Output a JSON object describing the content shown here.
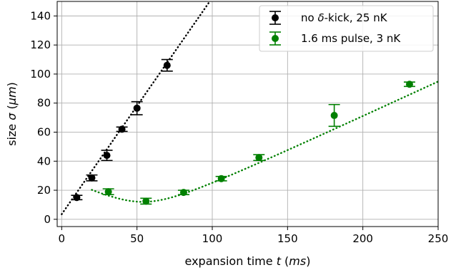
{
  "chart_data": {
    "type": "scatter",
    "xlabel": {
      "prefix": "expansion time ",
      "var": "t",
      "unit_open": " (",
      "unit": "ms",
      "unit_close": ")"
    },
    "ylabel": {
      "prefix": "size ",
      "var": "σ",
      "unit_open": " (",
      "unit": "μm",
      "unit_close": ")"
    },
    "xlim": [
      -3,
      250
    ],
    "ylim": [
      -5,
      150
    ],
    "xticks": [
      0,
      50,
      100,
      150,
      200,
      250
    ],
    "yticks": [
      0,
      20,
      40,
      60,
      80,
      100,
      120,
      140
    ],
    "grid": true,
    "legend_position": "top-right",
    "series": [
      {
        "name": "no δ-kick, 25 nK",
        "legend_parts": [
          "no ",
          "δ",
          "-kick, 25 nK"
        ],
        "color": "#000000",
        "points": [
          {
            "x": 10,
            "y": 15,
            "err": 1.5
          },
          {
            "x": 20,
            "y": 28.5,
            "err": 2
          },
          {
            "x": 30,
            "y": 44,
            "err": 3.5
          },
          {
            "x": 40,
            "y": 62,
            "err": 1.5
          },
          {
            "x": 50,
            "y": 76.5,
            "err": 4.5
          },
          {
            "x": 70,
            "y": 106,
            "err": 4
          }
        ],
        "fit": {
          "style": "dotted",
          "x_start": 0,
          "x_end": 120,
          "y_start": 3.5,
          "slope": 1.49
        }
      },
      {
        "name": "1.6 ms pulse, 3 nK",
        "legend_parts": [
          "1.6 ms pulse, 3 nK"
        ],
        "color": "#008000",
        "points": [
          {
            "x": 31,
            "y": 19,
            "err": 2
          },
          {
            "x": 56,
            "y": 12.5,
            "err": 2
          },
          {
            "x": 81,
            "y": 18.5,
            "err": 1.5
          },
          {
            "x": 106,
            "y": 28,
            "err": 1.5
          },
          {
            "x": 131,
            "y": 42.5,
            "err": 2
          },
          {
            "x": 181,
            "y": 71.5,
            "err": 7.5
          },
          {
            "x": 231,
            "y": 93,
            "err": 1.5
          }
        ],
        "fit": {
          "style": "dotted",
          "x_start": 20,
          "x_end": 250,
          "t0": 54,
          "s0": 12,
          "a": 0.48
        }
      }
    ]
  }
}
